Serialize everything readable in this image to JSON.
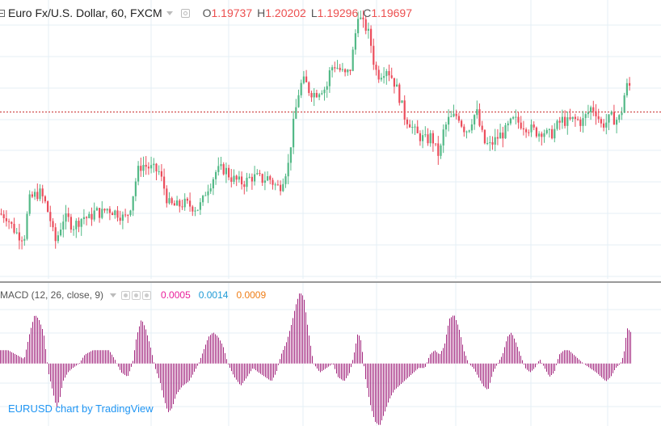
{
  "legend": {
    "symbol": "Euro Fx/U.S. Dollar, 60, FXCM",
    "ohlc": [
      {
        "key": "O",
        "value": "1.19737"
      },
      {
        "key": "H",
        "value": "1.20202"
      },
      {
        "key": "L",
        "value": "1.19296"
      },
      {
        "key": "C",
        "value": "1.19697"
      }
    ]
  },
  "macd_legend": {
    "title": "MACD (12, 26, close, 9)",
    "values": [
      {
        "value": "0.0005",
        "color": "#e91e9a"
      },
      {
        "value": "0.0014",
        "color": "#1e9ad6"
      },
      {
        "value": "0.0009",
        "color": "#ef7d16"
      }
    ]
  },
  "watermark": "EURUSD chart by TradingView",
  "colors": {
    "up": "#53b987",
    "down": "#eb4d5c",
    "histogram": "#a3287f",
    "last_price_line": "#c62828",
    "grid": "#e4eff5",
    "separator": "#333333",
    "watermark": "#2196f3"
  },
  "chart_data": [
    {
      "type": "candlestick",
      "timeframe": "60",
      "grid": true,
      "price_range": [
        1.1915,
        1.2022
      ],
      "last_price": 1.1979,
      "close_path": [
        [
          0,
          1.194
        ],
        [
          8,
          1.1939
        ],
        [
          15,
          1.1935
        ],
        [
          22,
          1.1932
        ],
        [
          30,
          1.1931
        ],
        [
          36,
          1.1945
        ],
        [
          42,
          1.1947
        ],
        [
          50,
          1.1948
        ],
        [
          56,
          1.1944
        ],
        [
          62,
          1.1938
        ],
        [
          68,
          1.1929
        ],
        [
          72,
          1.1932
        ],
        [
          78,
          1.1938
        ],
        [
          84,
          1.1938
        ],
        [
          90,
          1.1935
        ],
        [
          97,
          1.1937
        ],
        [
          103,
          1.1939
        ],
        [
          110,
          1.1938
        ],
        [
          118,
          1.1941
        ],
        [
          125,
          1.194
        ],
        [
          132,
          1.1942
        ],
        [
          140,
          1.1941
        ],
        [
          147,
          1.194
        ],
        [
          154,
          1.1938
        ],
        [
          160,
          1.1941
        ],
        [
          165,
          1.1948
        ],
        [
          170,
          1.1956
        ],
        [
          176,
          1.1959
        ],
        [
          182,
          1.1958
        ],
        [
          190,
          1.1957
        ],
        [
          197,
          1.1956
        ],
        [
          203,
          1.195
        ],
        [
          208,
          1.1944
        ],
        [
          214,
          1.1943
        ],
        [
          220,
          1.1943
        ],
        [
          228,
          1.1944
        ],
        [
          236,
          1.1943
        ],
        [
          244,
          1.1942
        ],
        [
          250,
          1.1944
        ],
        [
          255,
          1.1949
        ],
        [
          261,
          1.1952
        ],
        [
          267,
          1.1956
        ],
        [
          273,
          1.1957
        ],
        [
          279,
          1.1957
        ],
        [
          285,
          1.1954
        ],
        [
          291,
          1.1953
        ],
        [
          297,
          1.1952
        ],
        [
          303,
          1.1952
        ],
        [
          310,
          1.1954
        ],
        [
          318,
          1.1954
        ],
        [
          325,
          1.1953
        ],
        [
          332,
          1.1954
        ],
        [
          340,
          1.1951
        ],
        [
          346,
          1.195
        ],
        [
          352,
          1.1955
        ],
        [
          357,
          1.1959
        ],
        [
          361,
          1.197
        ],
        [
          366,
          1.198
        ],
        [
          371,
          1.1989
        ],
        [
          377,
          1.1991
        ],
        [
          383,
          1.1987
        ],
        [
          390,
          1.1986
        ],
        [
          397,
          1.1988
        ],
        [
          404,
          1.1988
        ],
        [
          409,
          1.1996
        ],
        [
          415,
          1.1997
        ],
        [
          421,
          1.1995
        ],
        [
          428,
          1.1993
        ],
        [
          434,
          1.1996
        ],
        [
          439,
          1.2007
        ],
        [
          443,
          1.2017
        ],
        [
          448,
          1.2013
        ],
        [
          454,
          1.2011
        ],
        [
          458,
          1.2007
        ],
        [
          462,
          1.1999
        ],
        [
          467,
          1.1993
        ],
        [
          472,
          1.1994
        ],
        [
          478,
          1.1996
        ],
        [
          484,
          1.1993
        ],
        [
          490,
          1.1989
        ],
        [
          496,
          1.1983
        ],
        [
          501,
          1.1977
        ],
        [
          507,
          1.1975
        ],
        [
          512,
          1.1972
        ],
        [
          517,
          1.197
        ],
        [
          523,
          1.1969
        ],
        [
          528,
          1.1968
        ],
        [
          534,
          1.197
        ],
        [
          539,
          1.1965
        ],
        [
          544,
          1.1962
        ],
        [
          549,
          1.1972
        ],
        [
          555,
          1.1976
        ],
        [
          561,
          1.1977
        ],
        [
          567,
          1.1978
        ],
        [
          573,
          1.1973
        ],
        [
          579,
          1.1972
        ],
        [
          585,
          1.1977
        ],
        [
          590,
          1.1979
        ],
        [
          594,
          1.1973
        ],
        [
          600,
          1.1967
        ],
        [
          606,
          1.1966
        ],
        [
          612,
          1.1968
        ],
        [
          618,
          1.197
        ],
        [
          624,
          1.1971
        ],
        [
          630,
          1.1974
        ],
        [
          636,
          1.1976
        ],
        [
          642,
          1.1975
        ],
        [
          648,
          1.1974
        ],
        [
          654,
          1.1973
        ],
        [
          660,
          1.1972
        ],
        [
          666,
          1.1971
        ],
        [
          672,
          1.1972
        ],
        [
          678,
          1.197
        ],
        [
          684,
          1.1971
        ],
        [
          690,
          1.1974
        ],
        [
          696,
          1.1976
        ],
        [
          702,
          1.1975
        ],
        [
          708,
          1.1976
        ],
        [
          714,
          1.1976
        ],
        [
          720,
          1.1975
        ],
        [
          726,
          1.1978
        ],
        [
          732,
          1.1981
        ],
        [
          738,
          1.1979
        ],
        [
          744,
          1.1974
        ],
        [
          750,
          1.1975
        ],
        [
          756,
          1.1977
        ],
        [
          762,
          1.1976
        ],
        [
          768,
          1.1977
        ],
        [
          773,
          1.1986
        ],
        [
          777,
          1.199
        ],
        [
          781,
          1.1988
        ]
      ]
    },
    {
      "type": "bar",
      "title": "MACD (12, 26, close, 9)",
      "histogram_range": [
        -0.0014,
        0.0017
      ],
      "histogram_path": [
        [
          0,
          0.0003
        ],
        [
          10,
          0.0003
        ],
        [
          20,
          0.0002
        ],
        [
          30,
          0.0001
        ],
        [
          37,
          0.0007
        ],
        [
          43,
          0.0011
        ],
        [
          48,
          0.001
        ],
        [
          54,
          0.0007
        ],
        [
          60,
          -0.0002
        ],
        [
          65,
          -0.0006
        ],
        [
          70,
          -0.001
        ],
        [
          74,
          -0.0008
        ],
        [
          78,
          -0.0004
        ],
        [
          84,
          -0.0002
        ],
        [
          90,
          -0.0001
        ],
        [
          98,
          0.0
        ],
        [
          105,
          0.0002
        ],
        [
          115,
          0.0003
        ],
        [
          125,
          0.0003
        ],
        [
          135,
          0.0003
        ],
        [
          142,
          0.0001
        ],
        [
          150,
          -0.0002
        ],
        [
          158,
          -0.0003
        ],
        [
          164,
          0.0
        ],
        [
          169,
          0.0006
        ],
        [
          175,
          0.001
        ],
        [
          180,
          0.0008
        ],
        [
          186,
          0.0004
        ],
        [
          192,
          -0.0001
        ],
        [
          198,
          -0.0004
        ],
        [
          203,
          -0.0008
        ],
        [
          208,
          -0.0011
        ],
        [
          213,
          -0.001
        ],
        [
          218,
          -0.0007
        ],
        [
          226,
          -0.0005
        ],
        [
          234,
          -0.0004
        ],
        [
          240,
          -0.0002
        ],
        [
          246,
          0.0
        ],
        [
          252,
          0.0003
        ],
        [
          258,
          0.0006
        ],
        [
          264,
          0.0007
        ],
        [
          270,
          0.0006
        ],
        [
          276,
          0.0004
        ],
        [
          282,
          0.0
        ],
        [
          290,
          -0.0003
        ],
        [
          298,
          -0.0005
        ],
        [
          306,
          -0.0003
        ],
        [
          313,
          -0.0001
        ],
        [
          320,
          -0.0002
        ],
        [
          328,
          -0.0003
        ],
        [
          336,
          -0.0004
        ],
        [
          342,
          -0.0002
        ],
        [
          348,
          0.0002
        ],
        [
          355,
          0.0005
        ],
        [
          361,
          0.0009
        ],
        [
          366,
          0.0013
        ],
        [
          371,
          0.0016
        ],
        [
          376,
          0.0015
        ],
        [
          381,
          0.0008
        ],
        [
          388,
          0.0
        ],
        [
          396,
          -0.0002
        ],
        [
          404,
          -0.0001
        ],
        [
          412,
          0.0
        ],
        [
          418,
          -0.0003
        ],
        [
          426,
          -0.0004
        ],
        [
          433,
          -0.0002
        ],
        [
          438,
          0.0002
        ],
        [
          443,
          0.0007
        ],
        [
          447,
          0.0005
        ],
        [
          452,
          -0.0003
        ],
        [
          458,
          -0.0009
        ],
        [
          464,
          -0.0013
        ],
        [
          470,
          -0.0014
        ],
        [
          476,
          -0.0011
        ],
        [
          482,
          -0.0008
        ],
        [
          488,
          -0.0006
        ],
        [
          494,
          -0.0005
        ],
        [
          500,
          -0.0004
        ],
        [
          506,
          -0.0003
        ],
        [
          512,
          -0.0002
        ],
        [
          518,
          -0.0001
        ],
        [
          526,
          -0.0001
        ],
        [
          532,
          0.0002
        ],
        [
          538,
          0.0003
        ],
        [
          544,
          0.0002
        ],
        [
          550,
          0.0004
        ],
        [
          556,
          0.001
        ],
        [
          562,
          0.0011
        ],
        [
          568,
          0.0008
        ],
        [
          574,
          0.0003
        ],
        [
          580,
          0.0
        ],
        [
          586,
          -0.0001
        ],
        [
          592,
          -0.0003
        ],
        [
          598,
          -0.0005
        ],
        [
          604,
          -0.0006
        ],
        [
          610,
          -0.0002
        ],
        [
          616,
          0.0
        ],
        [
          622,
          0.0002
        ],
        [
          628,
          0.0006
        ],
        [
          633,
          0.0007
        ],
        [
          638,
          0.0005
        ],
        [
          644,
          0.0002
        ],
        [
          650,
          -0.0001
        ],
        [
          656,
          -0.0002
        ],
        [
          662,
          -0.0001
        ],
        [
          668,
          0.0001
        ],
        [
          674,
          -0.0001
        ],
        [
          680,
          -0.0003
        ],
        [
          686,
          -0.0002
        ],
        [
          692,
          0.0002
        ],
        [
          698,
          0.0003
        ],
        [
          704,
          0.0003
        ],
        [
          710,
          0.0002
        ],
        [
          716,
          0.0001
        ],
        [
          722,
          0.0
        ],
        [
          730,
          -0.0001
        ],
        [
          738,
          -0.0002
        ],
        [
          744,
          -0.0003
        ],
        [
          750,
          -0.0004
        ],
        [
          756,
          -0.0003
        ],
        [
          762,
          -0.0001
        ],
        [
          768,
          0.0
        ],
        [
          772,
          0.0002
        ],
        [
          776,
          0.0008
        ],
        [
          781,
          0.0007
        ]
      ]
    }
  ]
}
